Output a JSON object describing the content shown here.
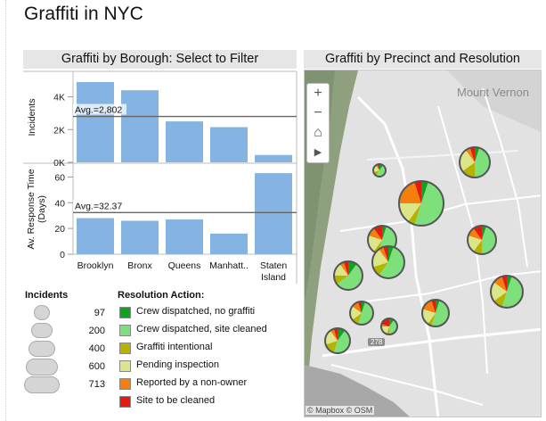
{
  "title": "Graffiti in NYC",
  "left_panel": {
    "title": "Graffiti by Borough: Select to Filter"
  },
  "right_panel": {
    "title": "Graffiti by Precinct and Resolution"
  },
  "chart_data": [
    {
      "type": "bar",
      "ylabel": "Incidents",
      "categories": [
        "Brooklyn",
        "Bronx",
        "Queens",
        "Manhatt..",
        "Staten Island"
      ],
      "values": [
        4900,
        4400,
        2500,
        2150,
        450
      ],
      "yticks": [
        "0K",
        "2K",
        "4K"
      ],
      "ylim": [
        0,
        5500
      ],
      "reference_line": {
        "label": "Avg.=2,802",
        "value": 2802
      },
      "color": "#85b4e3"
    },
    {
      "type": "bar",
      "ylabel": "Av. Response Time (Days)",
      "categories": [
        "Brooklyn",
        "Bronx",
        "Queens",
        "Manhatt..",
        "Staten Island"
      ],
      "values": [
        28,
        26,
        27,
        16,
        63
      ],
      "yticks": [
        "0",
        "20",
        "40",
        "60"
      ],
      "ylim": [
        0,
        70
      ],
      "reference_line": {
        "label": "Avg.=32.37",
        "value": 32.37
      },
      "color": "#85b4e3"
    }
  ],
  "x_labels": [
    "Brooklyn",
    "Bronx",
    "Queens",
    "Manhatt..",
    "Staten",
    "Island"
  ],
  "size_legend": {
    "title": "Incidents",
    "items": [
      "97",
      "200",
      "400",
      "600",
      "713"
    ]
  },
  "resolution_legend": {
    "title": "Resolution Action:",
    "items": [
      {
        "label": "Crew dispatched, no graffiti",
        "color": "#0fa320"
      },
      {
        "label": "Crew dispatched, site cleaned",
        "color": "#7ee07b"
      },
      {
        "label": "Graffiti intentional",
        "color": "#b5b300"
      },
      {
        "label": "Pending inspection",
        "color": "#dde589"
      },
      {
        "label": "Reported by a non-owner",
        "color": "#f57f0a"
      },
      {
        "label": "Site to be cleaned",
        "color": "#e31b12"
      }
    ]
  },
  "map": {
    "place_label": "Mount Vernon",
    "highway_label": "278",
    "credit": "© Mapbox © OSM",
    "controls": {
      "zoom_in": "+",
      "zoom_out": "−",
      "home": "⌂",
      "play": "▶"
    }
  }
}
